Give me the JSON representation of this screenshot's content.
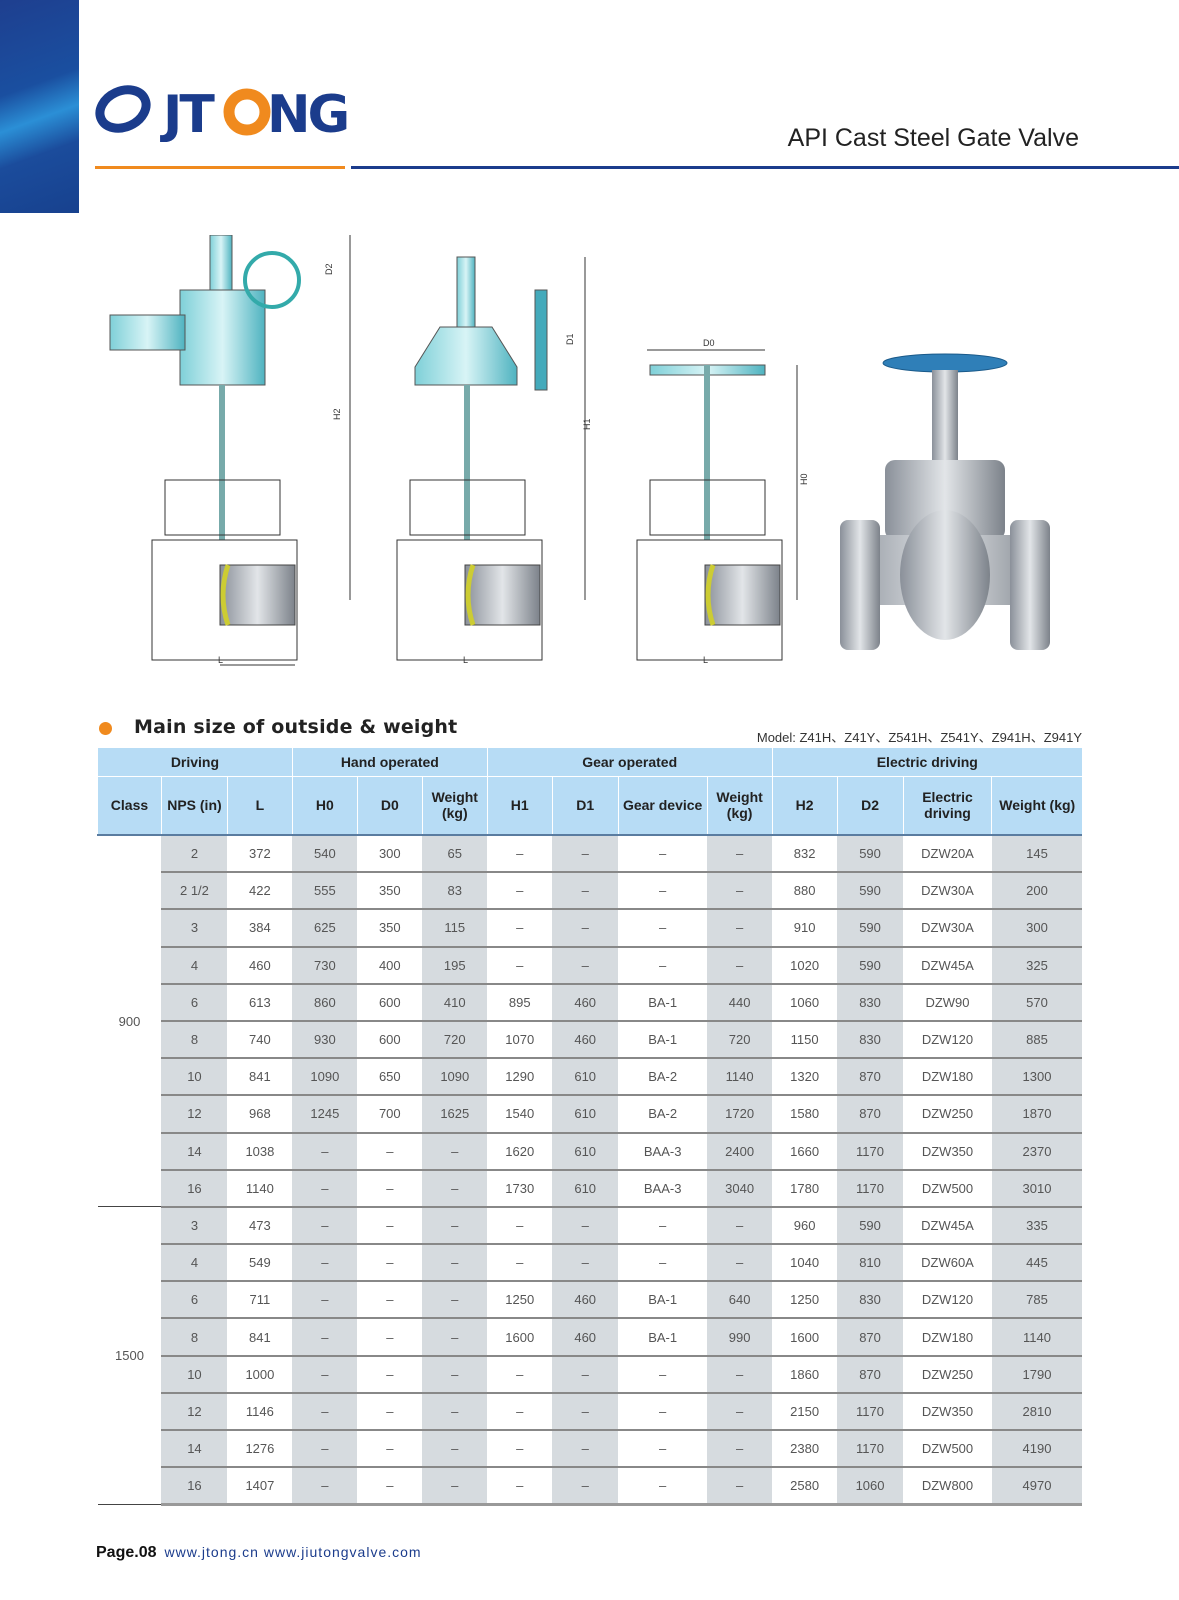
{
  "brand": {
    "logo_text": "JTONG",
    "colors": {
      "blue": "#1b3c8c",
      "orange": "#f08a1e",
      "header_cell": "#b7dcf5",
      "shade": "#d6dbdf"
    }
  },
  "header": {
    "title": "API Cast Steel Gate Valve"
  },
  "figures": {
    "labels": [
      "D2",
      "H2",
      "L",
      "D1",
      "H1",
      "L",
      "D0",
      "H0",
      "L"
    ]
  },
  "section": {
    "title": "Main size of outside & weight",
    "model": "Model: Z41H、Z41Y、Z541H、Z541Y、Z941H、Z941Y"
  },
  "table": {
    "groups": [
      "Driving",
      "Hand operated",
      "Gear operated",
      "Electric driving"
    ],
    "columns": [
      "Class",
      "NPS (in)",
      "L",
      "H0",
      "D0",
      "Weight (kg)",
      "H1",
      "D1",
      "Gear device",
      "Weight (kg)",
      "H2",
      "D2",
      "Electric driving",
      "Weight (kg)"
    ],
    "classes": [
      {
        "class": "900",
        "rows": [
          [
            "2",
            "372",
            "540",
            "300",
            "65",
            "–",
            "–",
            "–",
            "–",
            "832",
            "590",
            "DZW20A",
            "145"
          ],
          [
            "2 1/2",
            "422",
            "555",
            "350",
            "83",
            "–",
            "–",
            "–",
            "–",
            "880",
            "590",
            "DZW30A",
            "200"
          ],
          [
            "3",
            "384",
            "625",
            "350",
            "115",
            "–",
            "–",
            "–",
            "–",
            "910",
            "590",
            "DZW30A",
            "300"
          ],
          [
            "4",
            "460",
            "730",
            "400",
            "195",
            "–",
            "–",
            "–",
            "–",
            "1020",
            "590",
            "DZW45A",
            "325"
          ],
          [
            "6",
            "613",
            "860",
            "600",
            "410",
            "895",
            "460",
            "BA-1",
            "440",
            "1060",
            "830",
            "DZW90",
            "570"
          ],
          [
            "8",
            "740",
            "930",
            "600",
            "720",
            "1070",
            "460",
            "BA-1",
            "720",
            "1150",
            "830",
            "DZW120",
            "885"
          ],
          [
            "10",
            "841",
            "1090",
            "650",
            "1090",
            "1290",
            "610",
            "BA-2",
            "1140",
            "1320",
            "870",
            "DZW180",
            "1300"
          ],
          [
            "12",
            "968",
            "1245",
            "700",
            "1625",
            "1540",
            "610",
            "BA-2",
            "1720",
            "1580",
            "870",
            "DZW250",
            "1870"
          ],
          [
            "14",
            "1038",
            "–",
            "–",
            "–",
            "1620",
            "610",
            "BAA-3",
            "2400",
            "1660",
            "1170",
            "DZW350",
            "2370"
          ],
          [
            "16",
            "1140",
            "–",
            "–",
            "–",
            "1730",
            "610",
            "BAA-3",
            "3040",
            "1780",
            "1170",
            "DZW500",
            "3010"
          ]
        ]
      },
      {
        "class": "1500",
        "rows": [
          [
            "3",
            "473",
            "–",
            "–",
            "–",
            "–",
            "–",
            "–",
            "–",
            "960",
            "590",
            "DZW45A",
            "335"
          ],
          [
            "4",
            "549",
            "–",
            "–",
            "–",
            "–",
            "–",
            "–",
            "–",
            "1040",
            "810",
            "DZW60A",
            "445"
          ],
          [
            "6",
            "711",
            "–",
            "–",
            "–",
            "1250",
            "460",
            "BA-1",
            "640",
            "1250",
            "830",
            "DZW120",
            "785"
          ],
          [
            "8",
            "841",
            "–",
            "–",
            "–",
            "1600",
            "460",
            "BA-1",
            "990",
            "1600",
            "870",
            "DZW180",
            "1140"
          ],
          [
            "10",
            "1000",
            "–",
            "–",
            "–",
            "–",
            "–",
            "–",
            "–",
            "1860",
            "870",
            "DZW250",
            "1790"
          ],
          [
            "12",
            "1146",
            "–",
            "–",
            "–",
            "–",
            "–",
            "–",
            "–",
            "2150",
            "1170",
            "DZW350",
            "2810"
          ],
          [
            "14",
            "1276",
            "–",
            "–",
            "–",
            "–",
            "–",
            "–",
            "–",
            "2380",
            "1170",
            "DZW500",
            "4190"
          ],
          [
            "16",
            "1407",
            "–",
            "–",
            "–",
            "–",
            "–",
            "–",
            "–",
            "2580",
            "1060",
            "DZW800",
            "4970"
          ]
        ]
      }
    ]
  },
  "footer": {
    "page": "Page.08",
    "urls": "www.jtong.cn  www.jiutongvalve.com"
  }
}
